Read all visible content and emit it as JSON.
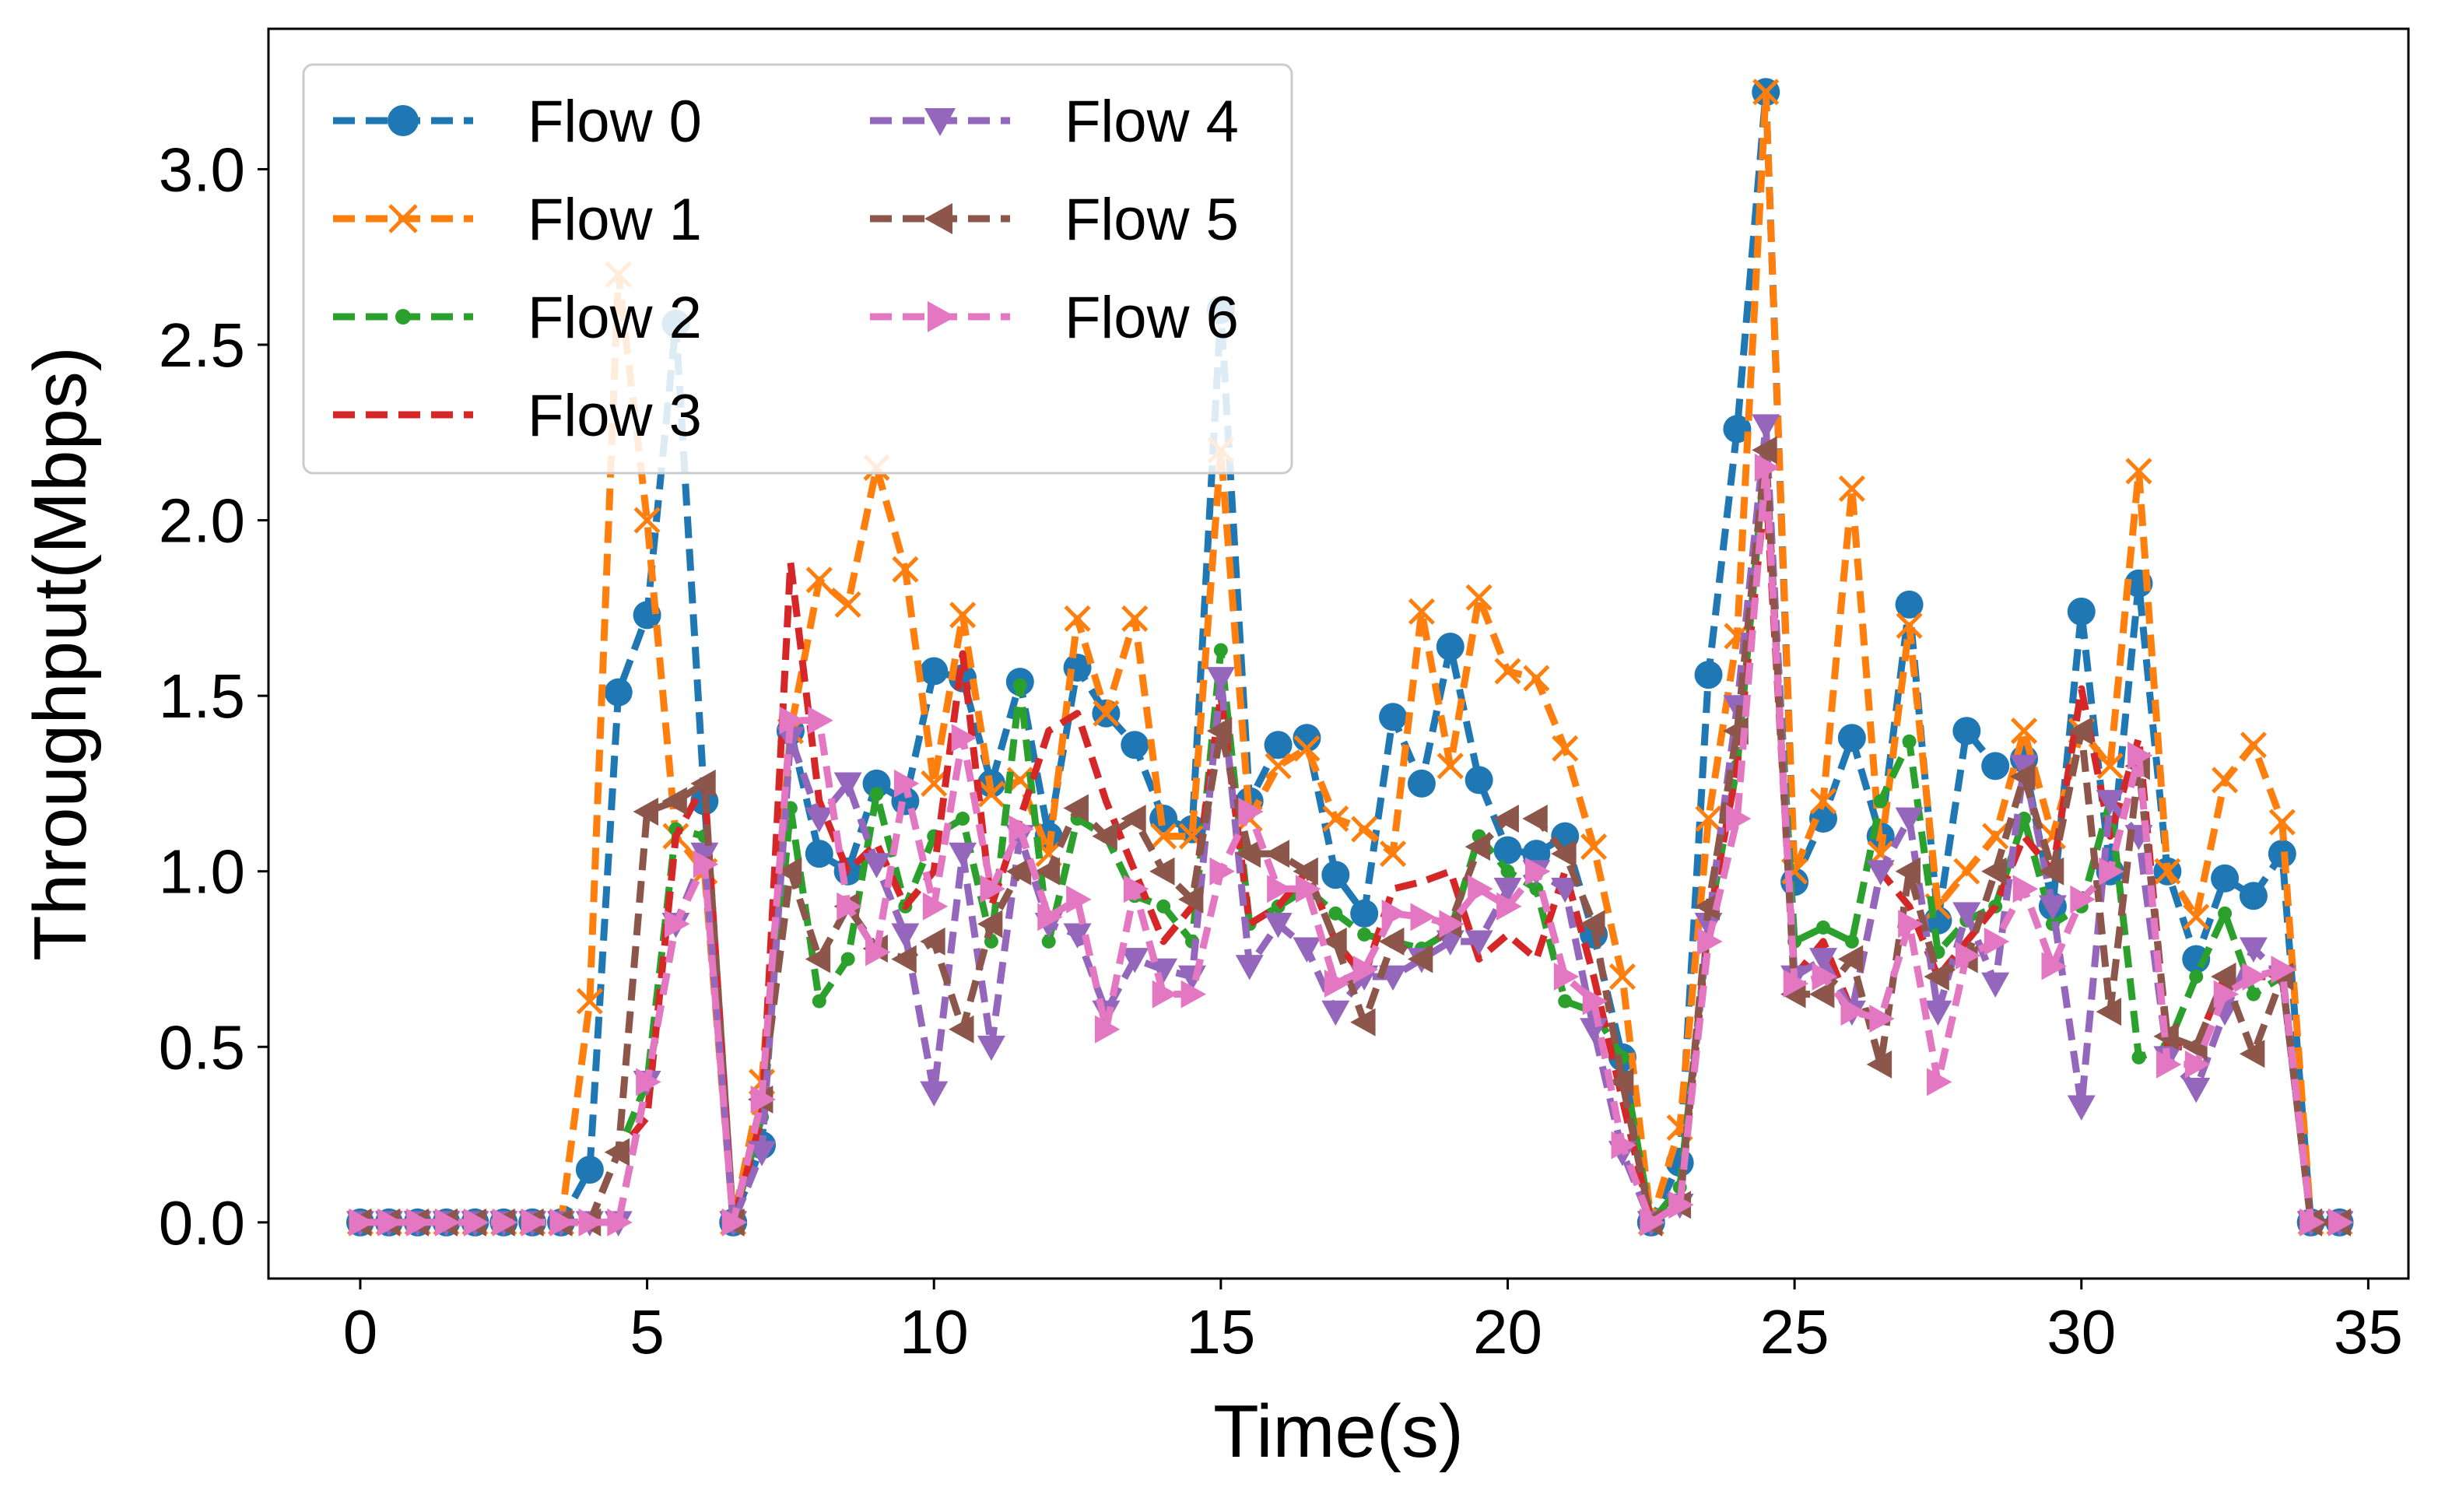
{
  "chart_data": {
    "type": "line",
    "title": "",
    "xlabel": "Time(s)",
    "ylabel": "Throughput(Mbps)",
    "xlim": [
      -1.6,
      35.7
    ],
    "ylim": [
      -0.16,
      3.4
    ],
    "xticks": [
      0,
      5,
      10,
      15,
      20,
      25,
      30,
      35
    ],
    "xtick_labels": [
      "0",
      "5",
      "10",
      "15",
      "20",
      "25",
      "30",
      "35"
    ],
    "yticks": [
      0.0,
      0.5,
      1.0,
      1.5,
      2.0,
      2.5,
      3.0
    ],
    "ytick_labels": [
      "0.0",
      "0.5",
      "1.0",
      "1.5",
      "2.0",
      "2.5",
      "3.0"
    ],
    "grid": false,
    "legend_position": "top-left",
    "legend_columns": 2,
    "x": [
      0,
      0.5,
      1,
      1.5,
      2,
      2.5,
      3,
      3.5,
      4,
      4.5,
      5,
      5.5,
      6,
      6.5,
      7,
      7.5,
      8,
      8.5,
      9,
      9.5,
      10,
      10.5,
      11,
      11.5,
      12,
      12.5,
      13,
      13.5,
      14,
      14.5,
      15,
      15.5,
      16,
      16.5,
      17,
      17.5,
      18,
      18.5,
      19,
      19.5,
      20,
      20.5,
      21,
      21.5,
      22,
      22.5,
      23,
      23.5,
      24,
      24.5,
      25,
      25.5,
      26,
      26.5,
      27,
      27.5,
      28,
      28.5,
      29,
      29.5,
      30,
      30.5,
      31,
      31.5,
      32,
      32.5,
      33,
      33.5,
      34,
      34.5
    ],
    "series": [
      {
        "name": "Flow 0",
        "color": "#1f77b4",
        "marker": "circle",
        "values": [
          0,
          0,
          0,
          0,
          0,
          0,
          0,
          0,
          0.15,
          1.51,
          1.73,
          2.56,
          1.2,
          0,
          0.22,
          1.4,
          1.05,
          1.0,
          1.25,
          1.2,
          1.57,
          1.55,
          1.25,
          1.54,
          1.1,
          1.58,
          1.45,
          1.36,
          1.15,
          1.12,
          2.6,
          1.2,
          1.36,
          1.38,
          0.99,
          0.88,
          1.44,
          1.25,
          1.64,
          1.26,
          1.06,
          1.05,
          1.1,
          0.82,
          0.47,
          0,
          0.17,
          1.56,
          2.26,
          3.22,
          0.97,
          1.15,
          1.38,
          1.1,
          1.76,
          0.86,
          1.4,
          1.3,
          1.32,
          0.9,
          1.74,
          1.0,
          1.82,
          1.0,
          0.75,
          0.98,
          0.93,
          1.05,
          0,
          0
        ]
      },
      {
        "name": "Flow 1",
        "color": "#ff7f0e",
        "marker": "x",
        "values": [
          0,
          0,
          0,
          0,
          0,
          0,
          0,
          0,
          0.63,
          2.7,
          2.0,
          1.1,
          1.0,
          0,
          0.4,
          1.4,
          1.83,
          1.76,
          2.15,
          1.86,
          1.25,
          1.73,
          1.22,
          1.26,
          1.05,
          1.72,
          1.45,
          1.72,
          1.1,
          1.1,
          2.2,
          1.15,
          1.3,
          1.35,
          1.15,
          1.12,
          1.05,
          1.74,
          1.3,
          1.78,
          1.57,
          1.55,
          1.35,
          1.07,
          0.7,
          0,
          0.27,
          1.15,
          1.67,
          3.22,
          1.0,
          1.2,
          2.09,
          1.05,
          1.7,
          0.9,
          1.0,
          1.1,
          1.4,
          1.1,
          1.4,
          1.3,
          2.14,
          1.0,
          0.87,
          1.26,
          1.36,
          1.14,
          0,
          0
        ]
      },
      {
        "name": "Flow 2",
        "color": "#2ca02c",
        "marker": "point",
        "values": [
          0,
          0,
          0,
          0,
          0,
          0,
          0,
          0,
          0,
          0.2,
          0.4,
          1.12,
          1.1,
          0,
          0.3,
          1.18,
          0.63,
          0.75,
          1.22,
          0.9,
          1.1,
          1.15,
          0.8,
          1.53,
          0.8,
          1.15,
          1.1,
          0.93,
          0.9,
          0.8,
          1.63,
          0.85,
          0.9,
          0.95,
          0.88,
          0.82,
          0.8,
          0.78,
          0.83,
          1.1,
          1.0,
          0.95,
          0.63,
          0.6,
          0.47,
          0,
          0.1,
          0.85,
          1.3,
          2.2,
          0.8,
          0.84,
          0.8,
          1.2,
          1.37,
          0.77,
          0.86,
          0.9,
          1.15,
          0.85,
          0.9,
          1.2,
          0.47,
          0.5,
          0.7,
          0.88,
          0.65,
          0.7,
          0,
          0
        ]
      },
      {
        "name": "Flow 3",
        "color": "#d62728",
        "marker": "none",
        "values": [
          0,
          0,
          0,
          0,
          0,
          0,
          0,
          0,
          0,
          0.2,
          0.3,
          1.1,
          1.25,
          0,
          0.3,
          1.88,
          1.2,
          1.0,
          1.08,
          0.9,
          1.0,
          1.62,
          0.9,
          1.15,
          1.4,
          1.45,
          1.2,
          1.0,
          0.8,
          0.9,
          1.5,
          0.85,
          0.9,
          1.0,
          0.8,
          0.7,
          0.95,
          0.97,
          1.0,
          0.75,
          0.82,
          0.75,
          1.0,
          0.7,
          0.35,
          0,
          0.05,
          0.85,
          1.3,
          2.1,
          0.7,
          0.8,
          0.6,
          1.0,
          0.9,
          0.7,
          0.8,
          0.9,
          1.1,
          1.0,
          1.52,
          1.1,
          1.38,
          0.5,
          0.5,
          0.7,
          0.7,
          0.7,
          0,
          0
        ]
      },
      {
        "name": "Flow 4",
        "color": "#9467bd",
        "marker": "triangle-down",
        "values": [
          0,
          0,
          0,
          0,
          0,
          0,
          0,
          0,
          0,
          0,
          0.4,
          0.85,
          1.05,
          0,
          0.2,
          1.38,
          1.15,
          1.25,
          1.02,
          0.82,
          0.37,
          1.05,
          0.5,
          1.1,
          0.85,
          0.82,
          0.6,
          0.75,
          0.72,
          0.7,
          1.55,
          0.73,
          0.85,
          0.78,
          0.6,
          0.7,
          0.7,
          0.75,
          0.8,
          0.8,
          0.95,
          1.0,
          0.95,
          0.55,
          0.2,
          0,
          0.05,
          0.85,
          1.47,
          2.27,
          0.7,
          0.75,
          0.6,
          1.0,
          1.15,
          0.6,
          0.88,
          0.68,
          1.3,
          0.9,
          0.33,
          1.2,
          1.1,
          0.47,
          0.38,
          0.6,
          0.78,
          0.7,
          0,
          0
        ]
      },
      {
        "name": "Flow 5",
        "color": "#8c564b",
        "marker": "triangle-left",
        "values": [
          0,
          0,
          0,
          0,
          0,
          0,
          0,
          0,
          0,
          0.2,
          1.17,
          1.2,
          1.25,
          0,
          0.35,
          1.0,
          0.75,
          0.9,
          0.78,
          0.75,
          0.8,
          0.55,
          0.85,
          1.0,
          1.0,
          1.18,
          1.1,
          1.15,
          1.0,
          0.92,
          1.4,
          1.05,
          1.05,
          1.0,
          0.8,
          0.57,
          0.8,
          0.75,
          0.85,
          1.07,
          1.15,
          1.15,
          1.05,
          0.85,
          0.4,
          0,
          0.05,
          0.9,
          1.4,
          2.2,
          0.65,
          0.65,
          0.75,
          0.45,
          1.0,
          0.7,
          0.75,
          1.0,
          1.27,
          1.0,
          1.4,
          0.6,
          1.3,
          0.53,
          0.5,
          0.7,
          0.48,
          0.7,
          0,
          0
        ]
      },
      {
        "name": "Flow 6",
        "color": "#e377c2",
        "marker": "triangle-right",
        "values": [
          0,
          0,
          0,
          0,
          0,
          0,
          0,
          0,
          0,
          0,
          0.4,
          0.85,
          1.02,
          0,
          0.35,
          1.43,
          1.43,
          0.9,
          0.77,
          1.25,
          0.9,
          1.38,
          0.95,
          1.12,
          0.87,
          0.92,
          0.55,
          0.95,
          0.65,
          0.65,
          1.0,
          1.17,
          0.95,
          0.95,
          0.68,
          0.72,
          0.88,
          0.87,
          0.85,
          0.95,
          0.9,
          1.0,
          0.7,
          0.63,
          0.22,
          0,
          0.05,
          0.8,
          1.15,
          2.15,
          0.68,
          0.7,
          0.6,
          0.58,
          0.85,
          0.4,
          0.76,
          0.8,
          0.95,
          0.73,
          0.92,
          1.0,
          1.33,
          0.45,
          0.45,
          0.65,
          0.7,
          0.72,
          0,
          0
        ]
      }
    ]
  }
}
